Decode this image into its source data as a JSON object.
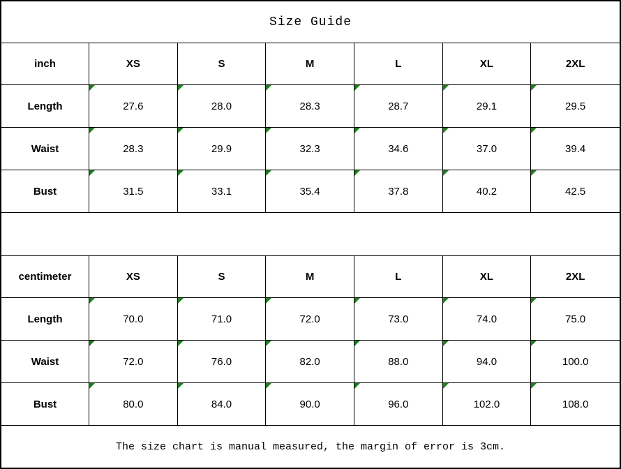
{
  "title": "Size Guide",
  "tables": [
    {
      "unit_label": "inch",
      "sizes": [
        "XS",
        "S",
        "M",
        "L",
        "XL",
        "2XL"
      ],
      "rows": [
        {
          "label": "Length",
          "values": [
            "27.6",
            "28.0",
            "28.3",
            "28.7",
            "29.1",
            "29.5"
          ]
        },
        {
          "label": "Waist",
          "values": [
            "28.3",
            "29.9",
            "32.3",
            "34.6",
            "37.0",
            "39.4"
          ]
        },
        {
          "label": "Bust",
          "values": [
            "31.5",
            "33.1",
            "35.4",
            "37.8",
            "40.2",
            "42.5"
          ]
        }
      ]
    },
    {
      "unit_label": "centimeter",
      "sizes": [
        "XS",
        "S",
        "M",
        "L",
        "XL",
        "2XL"
      ],
      "rows": [
        {
          "label": "Length",
          "values": [
            "70.0",
            "71.0",
            "72.0",
            "73.0",
            "74.0",
            "75.0"
          ]
        },
        {
          "label": "Waist",
          "values": [
            "72.0",
            "76.0",
            "82.0",
            "88.0",
            "94.0",
            "100.0"
          ]
        },
        {
          "label": "Bust",
          "values": [
            "80.0",
            "84.0",
            "90.0",
            "96.0",
            "102.0",
            "108.0"
          ]
        }
      ]
    }
  ],
  "footer_note": "The size chart is manual measured, the margin of error is 3cm.",
  "icons": {
    "cell_flag": "excel-corner-triangle-icon"
  },
  "colors": {
    "border": "#000000",
    "background": "#ffffff",
    "text": "#000000",
    "cell_flag_green": "#1e7e1e"
  }
}
